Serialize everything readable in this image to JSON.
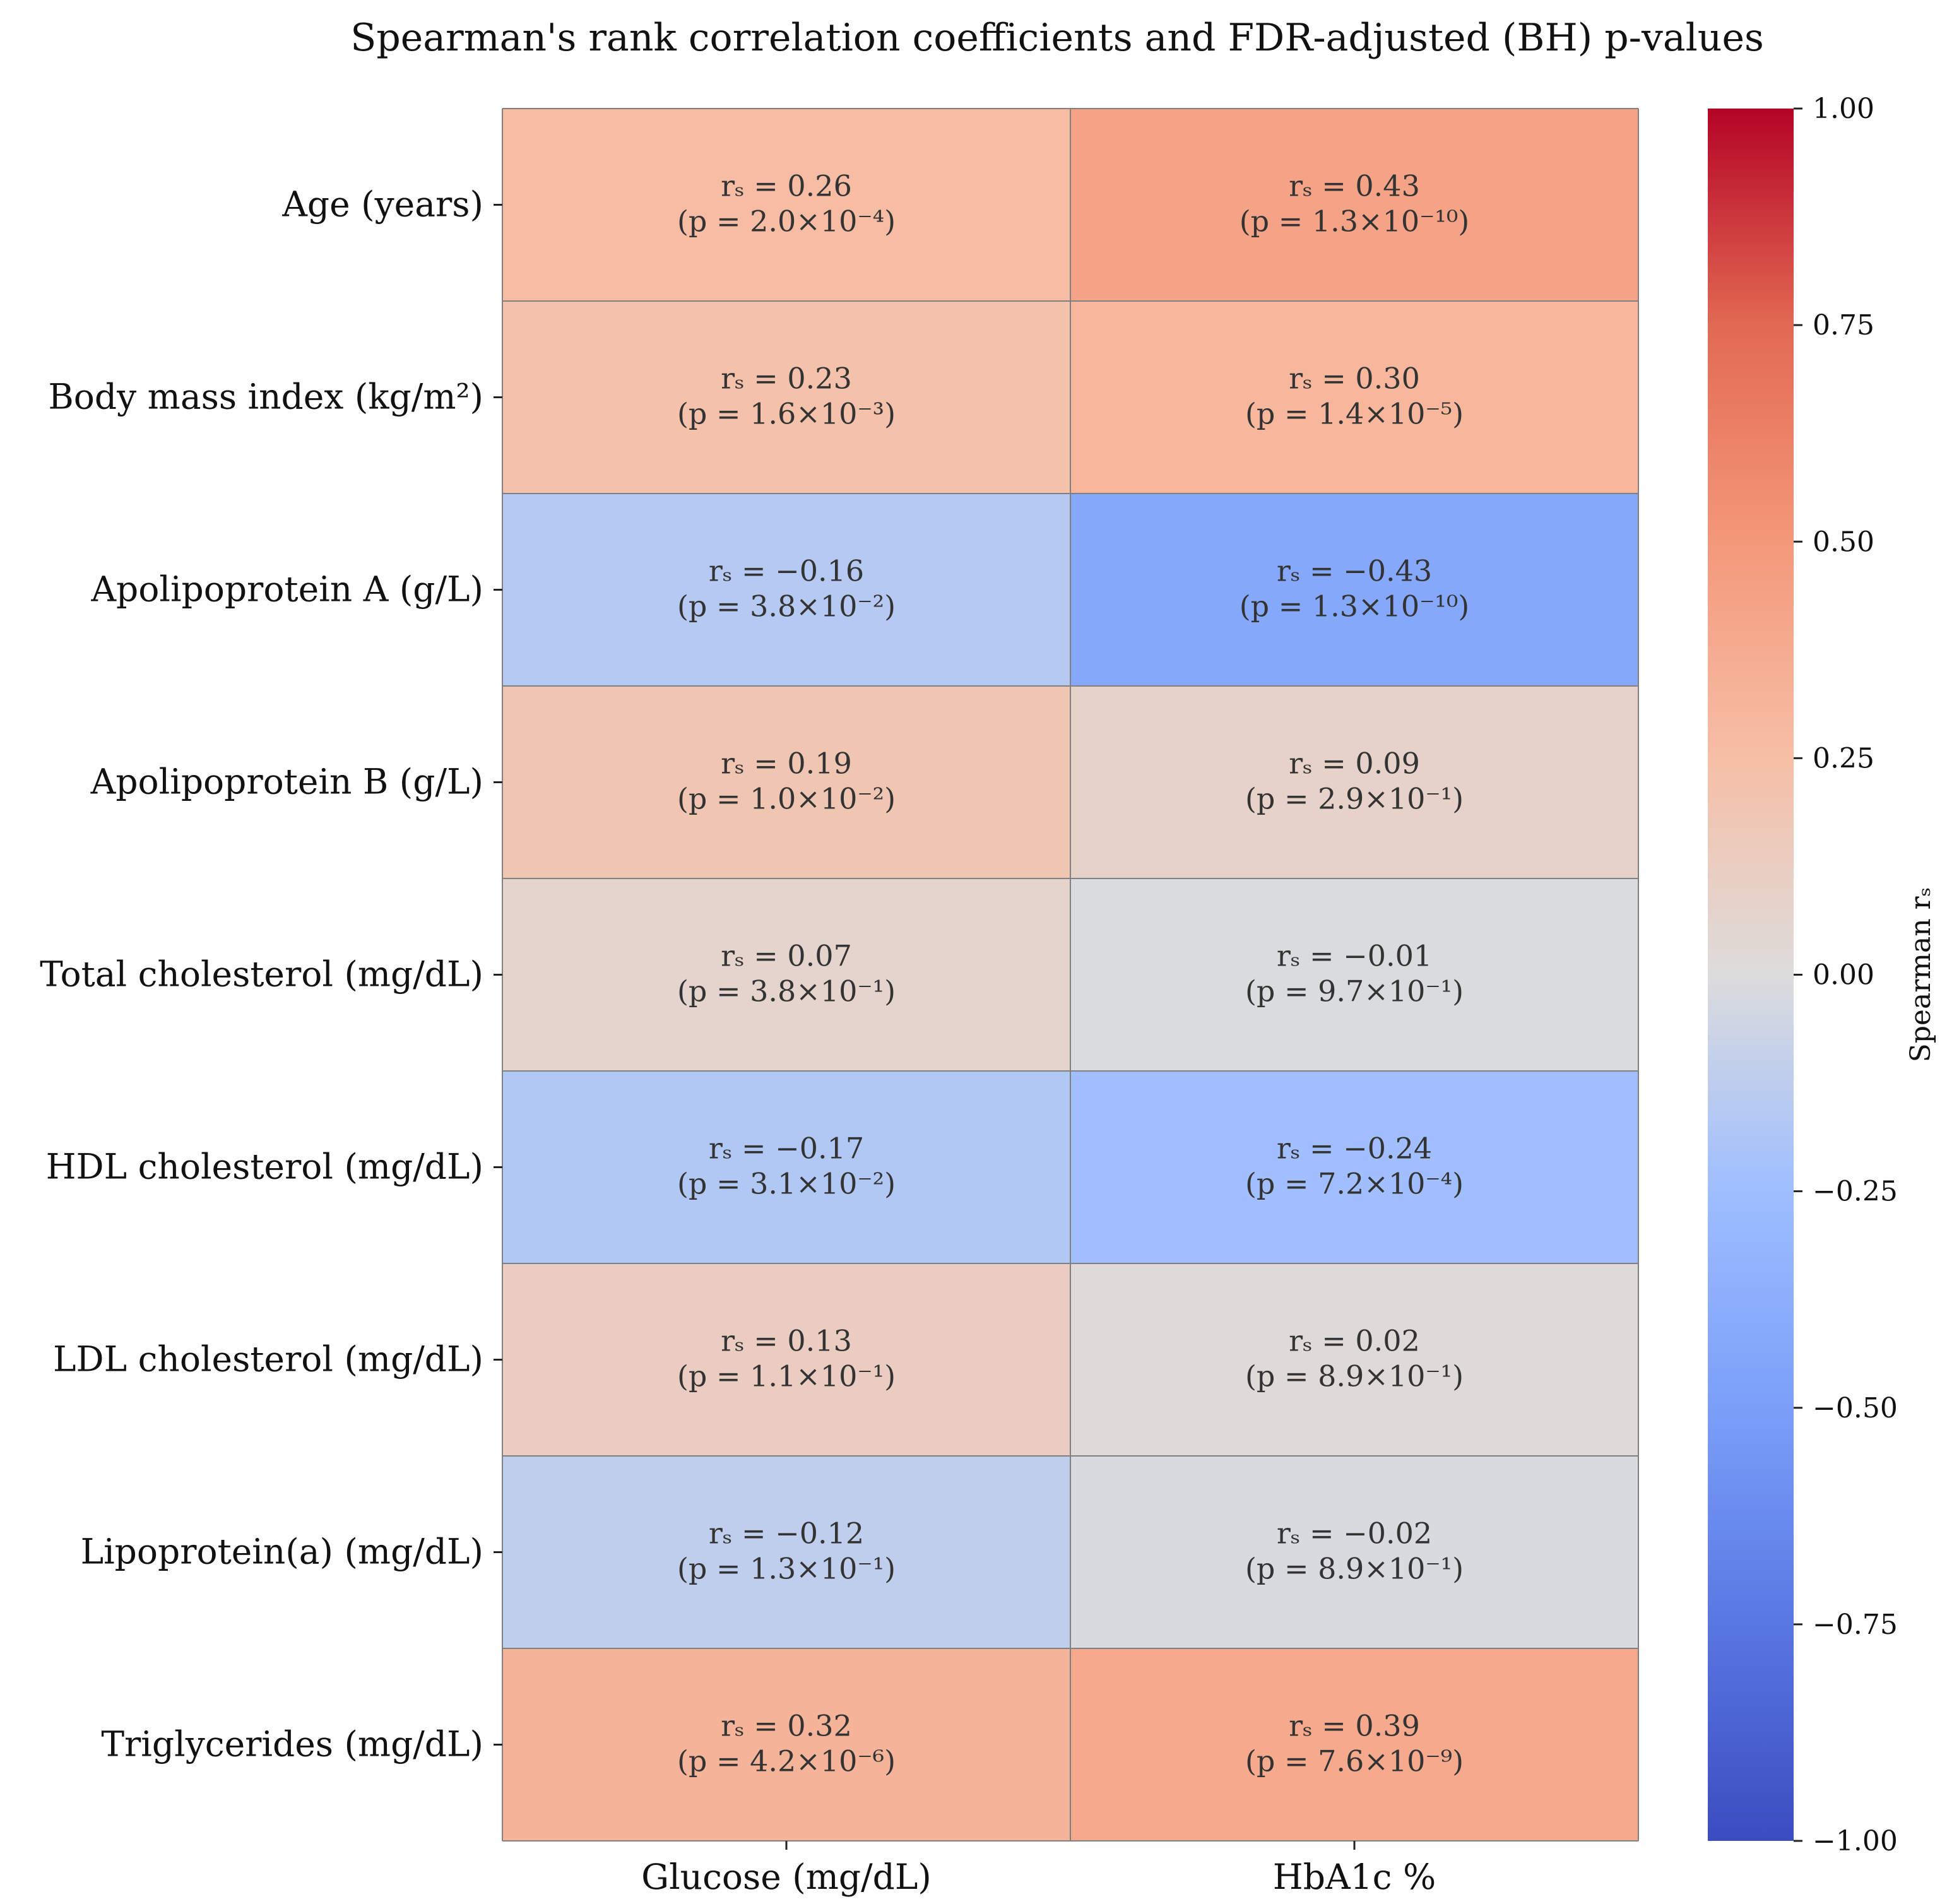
{
  "chart_data": {
    "type": "heatmap",
    "title": "Spearman's rank correlation coefficients and FDR-adjusted (BH) p-values",
    "rows": [
      "Age (years)",
      "Body mass index (kg/m²)",
      "Apolipoprotein A (g/L)",
      "Apolipoprotein B (g/L)",
      "Total cholesterol (mg/dL)",
      "HDL cholesterol (mg/dL)",
      "LDL cholesterol (mg/dL)",
      "Lipoprotein(a) (mg/dL)",
      "Triglycerides (mg/dL)"
    ],
    "columns": [
      "Glucose (mg/dL)",
      "HbA1c %"
    ],
    "values": [
      [
        0.26,
        0.43
      ],
      [
        0.23,
        0.3
      ],
      [
        -0.16,
        -0.43
      ],
      [
        0.19,
        0.09
      ],
      [
        0.07,
        -0.01
      ],
      [
        -0.17,
        -0.24
      ],
      [
        0.13,
        0.02
      ],
      [
        -0.12,
        -0.02
      ],
      [
        0.32,
        0.39
      ]
    ],
    "cell_labels": [
      [
        {
          "line1": "rₛ = 0.26",
          "line2": "(p = 2.0×10⁻⁴)"
        },
        {
          "line1": "rₛ = 0.43",
          "line2": "(p = 1.3×10⁻¹⁰)"
        }
      ],
      [
        {
          "line1": "rₛ = 0.23",
          "line2": "(p = 1.6×10⁻³)"
        },
        {
          "line1": "rₛ = 0.30",
          "line2": "(p = 1.4×10⁻⁵)"
        }
      ],
      [
        {
          "line1": "rₛ = −0.16",
          "line2": "(p = 3.8×10⁻²)"
        },
        {
          "line1": "rₛ = −0.43",
          "line2": "(p = 1.3×10⁻¹⁰)"
        }
      ],
      [
        {
          "line1": "rₛ = 0.19",
          "line2": "(p = 1.0×10⁻²)"
        },
        {
          "line1": "rₛ = 0.09",
          "line2": "(p = 2.9×10⁻¹)"
        }
      ],
      [
        {
          "line1": "rₛ = 0.07",
          "line2": "(p = 3.8×10⁻¹)"
        },
        {
          "line1": "rₛ = −0.01",
          "line2": "(p = 9.7×10⁻¹)"
        }
      ],
      [
        {
          "line1": "rₛ = −0.17",
          "line2": "(p = 3.1×10⁻²)"
        },
        {
          "line1": "rₛ = −0.24",
          "line2": "(p = 7.2×10⁻⁴)"
        }
      ],
      [
        {
          "line1": "rₛ = 0.13",
          "line2": "(p = 1.1×10⁻¹)"
        },
        {
          "line1": "rₛ = 0.02",
          "line2": "(p = 8.9×10⁻¹)"
        }
      ],
      [
        {
          "line1": "rₛ = −0.12",
          "line2": "(p = 1.3×10⁻¹)"
        },
        {
          "line1": "rₛ = −0.02",
          "line2": "(p = 8.9×10⁻¹)"
        }
      ],
      [
        {
          "line1": "rₛ = 0.32",
          "line2": "(p = 4.2×10⁻⁶)"
        },
        {
          "line1": "rₛ = 0.39",
          "line2": "(p = 7.6×10⁻⁹)"
        }
      ]
    ],
    "colorbar": {
      "label": "Spearman rₛ",
      "range": [
        -1.0,
        1.0
      ],
      "ticks": [
        1.0,
        0.75,
        0.5,
        0.25,
        0.0,
        -0.25,
        -0.5,
        -0.75,
        -1.0
      ],
      "tick_labels": [
        "1.00",
        "0.75",
        "0.50",
        "0.25",
        "0.00",
        "−0.25",
        "−0.50",
        "−0.75",
        "−1.00"
      ]
    },
    "colormap": {
      "name": "coolwarm",
      "stops": [
        {
          "value": -1.0,
          "color": "#3b4cc0"
        },
        {
          "value": -0.75,
          "color": "#5977e3"
        },
        {
          "value": -0.5,
          "color": "#7b9ff9"
        },
        {
          "value": -0.25,
          "color": "#9ebeff"
        },
        {
          "value": 0.0,
          "color": "#dddcdc"
        },
        {
          "value": 0.25,
          "color": "#f6bfa6"
        },
        {
          "value": 0.5,
          "color": "#f4987a"
        },
        {
          "value": 0.75,
          "color": "#e26952"
        },
        {
          "value": 1.0,
          "color": "#b40426"
        }
      ]
    },
    "cell_border_color": "#808080",
    "legend_placement": "right"
  }
}
